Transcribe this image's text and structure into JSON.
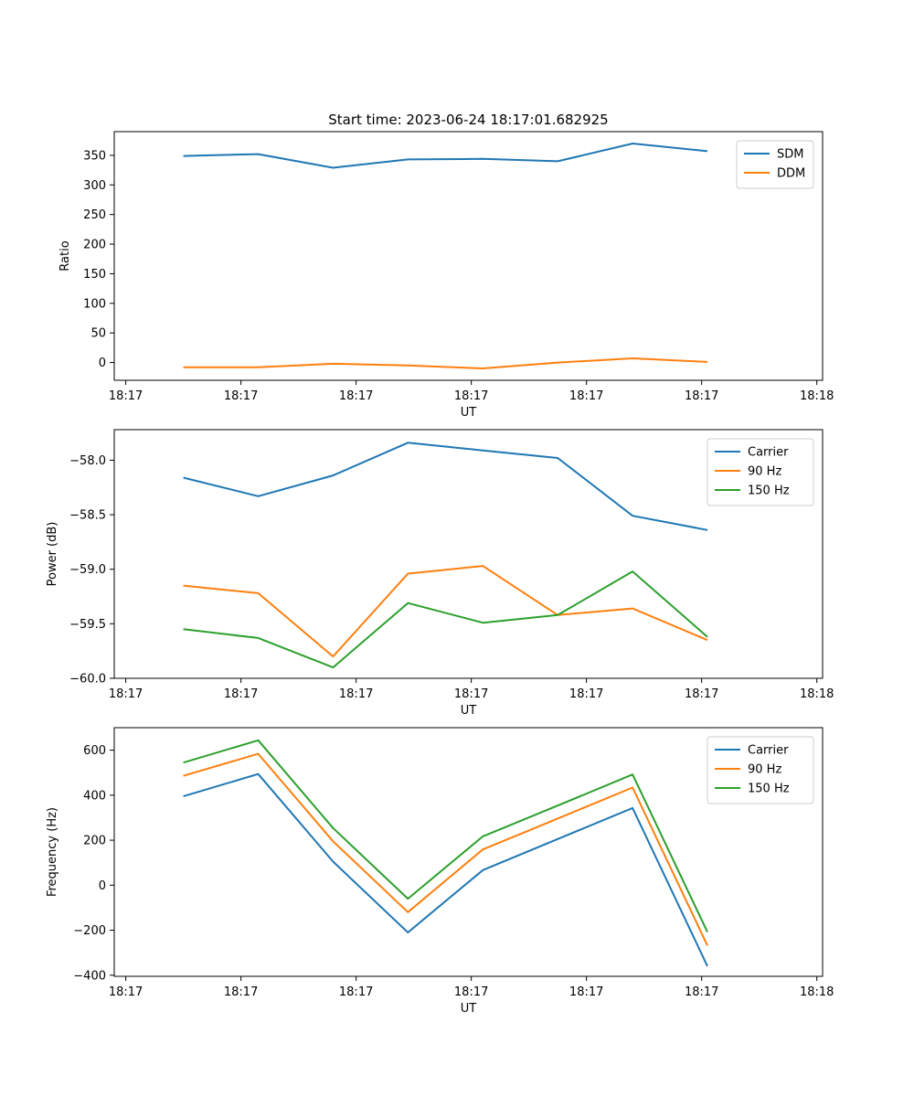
{
  "figure_title": "Start time: 2023-06-24 18:17:01.682925",
  "chart_data": [
    {
      "type": "line",
      "title": "Start time: 2023-06-24 18:17:01.682925",
      "xlabel": "UT",
      "ylabel": "Ratio",
      "x_tick_labels": [
        "18:17",
        "18:17",
        "18:17",
        "18:17",
        "18:17",
        "18:17",
        "18:18"
      ],
      "x": [
        0.5,
        1.15,
        1.8,
        2.45,
        3.1,
        3.75,
        4.4,
        5.05
      ],
      "xlim": [
        -0.1,
        6.05
      ],
      "ylim": [
        -30,
        390
      ],
      "yticks": [
        0,
        50,
        100,
        150,
        200,
        250,
        300,
        350
      ],
      "legend": "top-right",
      "series": [
        {
          "name": "SDM",
          "color": "#1f77b4",
          "values": [
            349,
            352,
            329,
            343,
            344,
            340,
            370,
            357
          ]
        },
        {
          "name": "DDM",
          "color": "#ff7f0e",
          "values": [
            -8,
            -8,
            -2,
            -5,
            -10,
            0,
            7,
            1
          ]
        }
      ]
    },
    {
      "type": "line",
      "xlabel": "UT",
      "ylabel": "Power (dB)",
      "x_tick_labels": [
        "18:17",
        "18:17",
        "18:17",
        "18:17",
        "18:17",
        "18:17",
        "18:18"
      ],
      "x": [
        0.5,
        1.15,
        1.8,
        2.45,
        3.1,
        3.75,
        4.4,
        5.05
      ],
      "xlim": [
        -0.1,
        6.05
      ],
      "ylim": [
        -60.0,
        -57.72
      ],
      "yticks": [
        -60.0,
        -59.5,
        -59.0,
        -58.5,
        -58.0
      ],
      "ytick_labels": [
        "−60.0",
        "−59.5",
        "−59.0",
        "−58.5",
        "−58.0"
      ],
      "legend": "top-right",
      "series": [
        {
          "name": "Carrier",
          "color": "#1f77b4",
          "values": [
            -58.16,
            -58.33,
            -58.14,
            -57.84,
            -57.91,
            -57.98,
            -58.51,
            -58.64
          ]
        },
        {
          "name": "90 Hz",
          "color": "#ff7f0e",
          "values": [
            -59.15,
            -59.22,
            -59.8,
            -59.04,
            -58.97,
            -59.42,
            -59.36,
            -59.65
          ]
        },
        {
          "name": "150 Hz",
          "color": "#2ca02c",
          "values": [
            -59.55,
            -59.63,
            -59.9,
            -59.31,
            -59.49,
            -59.42,
            -59.02,
            -59.62
          ]
        }
      ]
    },
    {
      "type": "line",
      "xlabel": "UT",
      "ylabel": "Frequency (Hz)",
      "x_tick_labels": [
        "18:17",
        "18:17",
        "18:17",
        "18:17",
        "18:17",
        "18:17",
        "18:18"
      ],
      "x": [
        0.5,
        1.15,
        1.8,
        2.45,
        3.1,
        3.75,
        4.4,
        5.05
      ],
      "xlim": [
        -0.1,
        6.05
      ],
      "ylim": [
        -405,
        700
      ],
      "yticks": [
        -400,
        -200,
        0,
        200,
        400,
        600
      ],
      "ytick_labels": [
        "−400",
        "−200",
        "0",
        "200",
        "400",
        "600"
      ],
      "legend": "top-right",
      "series": [
        {
          "name": "Carrier",
          "color": "#1f77b4",
          "values": [
            395,
            494,
            105,
            -210,
            67,
            205,
            343,
            -360
          ]
        },
        {
          "name": "90 Hz",
          "color": "#ff7f0e",
          "values": [
            486,
            584,
            195,
            -120,
            159,
            296,
            434,
            -268
          ]
        },
        {
          "name": "150 Hz",
          "color": "#2ca02c",
          "values": [
            545,
            644,
            254,
            -60,
            217,
            354,
            492,
            -208
          ]
        }
      ]
    }
  ]
}
